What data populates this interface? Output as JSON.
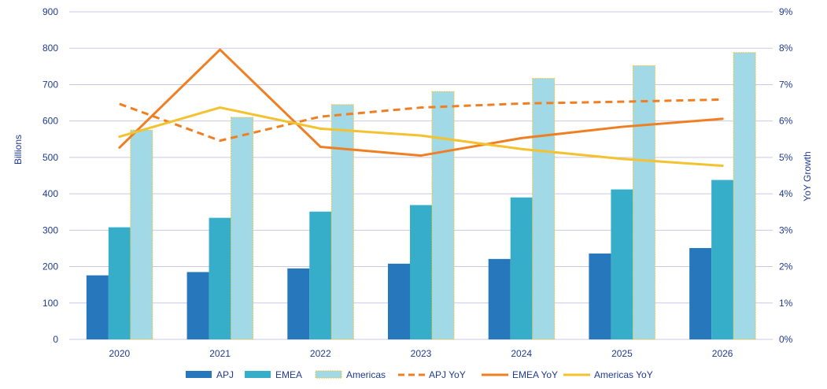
{
  "chart_data": {
    "type": "bar",
    "categories": [
      "2020",
      "2021",
      "2022",
      "2023",
      "2024",
      "2025",
      "2026"
    ],
    "series": [
      {
        "name": "APJ",
        "kind": "bar",
        "axis": "left",
        "color": "#2777bd",
        "values": [
          176,
          185,
          195,
          208,
          221,
          236,
          251
        ]
      },
      {
        "name": "EMEA",
        "kind": "bar",
        "axis": "left",
        "color": "#36adc9",
        "values": [
          308,
          334,
          351,
          369,
          390,
          412,
          438
        ]
      },
      {
        "name": "Americas",
        "kind": "bar",
        "axis": "left",
        "color": "#a1d9e6",
        "border": "#e6c84a",
        "values": [
          575,
          610,
          645,
          681,
          717,
          752,
          788
        ]
      },
      {
        "name": "APJ YoY",
        "kind": "line",
        "dashed": true,
        "axis": "right",
        "color": "#ef7f22",
        "values": [
          6.47,
          5.46,
          6.12,
          6.37,
          6.48,
          6.53,
          6.59
        ]
      },
      {
        "name": "EMEA YoY",
        "kind": "line",
        "dashed": false,
        "axis": "right",
        "color": "#ef7f22",
        "values": [
          5.27,
          7.96,
          5.29,
          5.05,
          5.53,
          5.84,
          6.06
        ]
      },
      {
        "name": "Americas YoY",
        "kind": "line",
        "dashed": false,
        "axis": "right",
        "color": "#f4c12f",
        "values": [
          5.57,
          6.37,
          5.79,
          5.6,
          5.23,
          4.96,
          4.77
        ]
      }
    ],
    "y_left": {
      "label": "Billions",
      "min": 0,
      "max": 900,
      "ticks": [
        "0",
        "100",
        "200",
        "300",
        "400",
        "500",
        "600",
        "700",
        "800",
        "900"
      ]
    },
    "y_right": {
      "label": "YoY Growth",
      "min": 0,
      "max": 9,
      "ticks": [
        "0%",
        "1%",
        "2%",
        "3%",
        "4%",
        "5%",
        "6%",
        "7%",
        "8%",
        "9%"
      ]
    },
    "grid": true,
    "legend": "bottom"
  }
}
